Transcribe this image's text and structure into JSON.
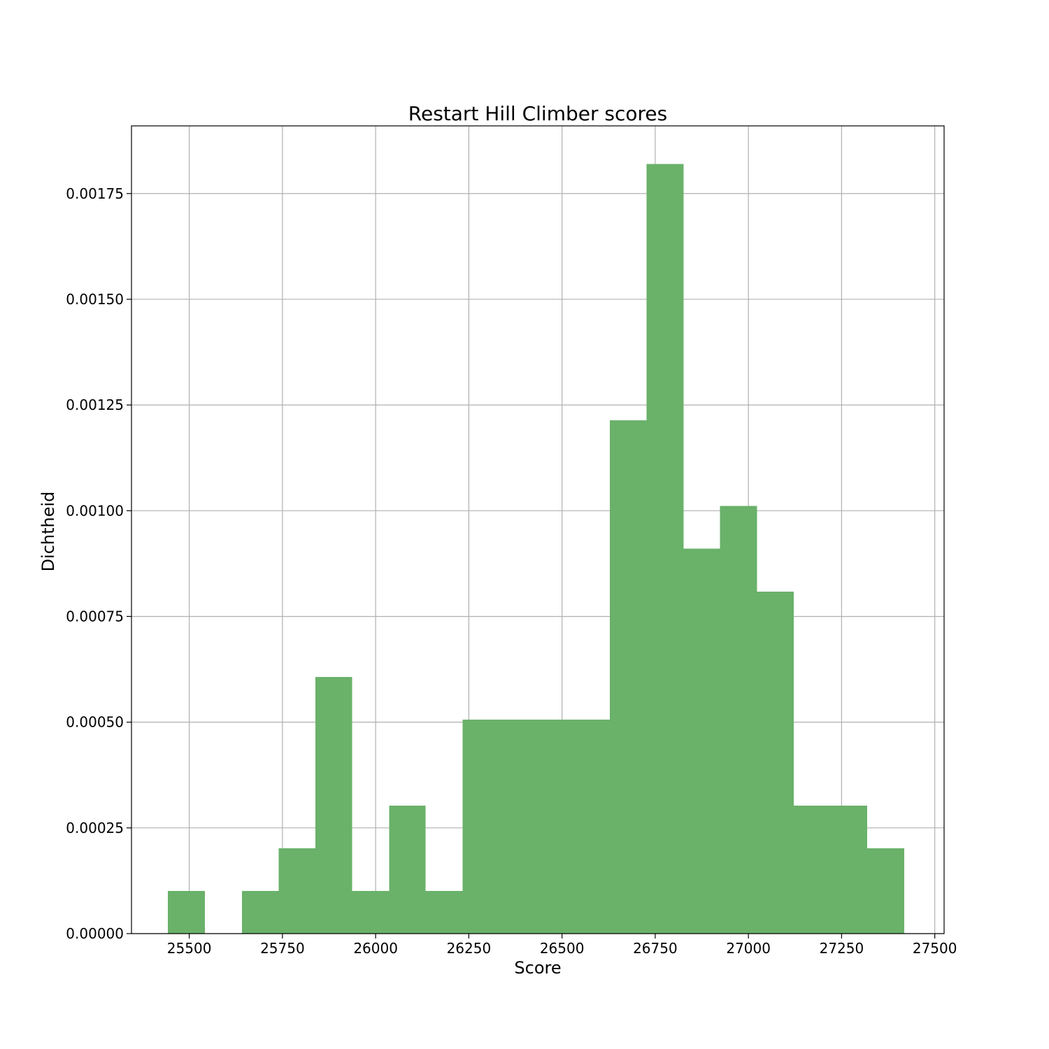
{
  "chart_data": {
    "type": "bar",
    "title": "Restart Hill Climber scores",
    "xlabel": "Score",
    "ylabel": "Dichtheid",
    "xlim": [
      25345,
      27525
    ],
    "ylim": [
      0,
      0.00191
    ],
    "xticks": [
      25500,
      25750,
      26000,
      26250,
      26500,
      26750,
      27000,
      27250,
      27500
    ],
    "yticks": [
      0.0,
      0.00025,
      0.0005,
      0.00075,
      0.001,
      0.00125,
      0.0015,
      0.00175
    ],
    "xtick_labels": [
      "25500",
      "25750",
      "26000",
      "26250",
      "26500",
      "26750",
      "27000",
      "27250",
      "27500"
    ],
    "ytick_labels": [
      "0.00000",
      "0.00025",
      "0.00050",
      "0.00075",
      "0.00100",
      "0.00125",
      "0.00150",
      "0.00175"
    ],
    "grid": true,
    "color": "#6ab16a",
    "bins": [
      {
        "x0": 25443,
        "x1": 25542,
        "value": 0.000101
      },
      {
        "x0": 25542,
        "x1": 25641,
        "value": 0.0
      },
      {
        "x0": 25641,
        "x1": 25740,
        "value": 0.000101
      },
      {
        "x0": 25740,
        "x1": 25838,
        "value": 0.000202
      },
      {
        "x0": 25838,
        "x1": 25937,
        "value": 0.000607
      },
      {
        "x0": 25937,
        "x1": 26036,
        "value": 0.000101
      },
      {
        "x0": 26036,
        "x1": 26134,
        "value": 0.000303
      },
      {
        "x0": 26134,
        "x1": 26233,
        "value": 0.000101
      },
      {
        "x0": 26233,
        "x1": 26332,
        "value": 0.000506
      },
      {
        "x0": 26332,
        "x1": 26431,
        "value": 0.000506
      },
      {
        "x0": 26431,
        "x1": 26529,
        "value": 0.000506
      },
      {
        "x0": 26529,
        "x1": 26628,
        "value": 0.000506
      },
      {
        "x0": 26628,
        "x1": 26727,
        "value": 0.001214
      },
      {
        "x0": 26727,
        "x1": 26826,
        "value": 0.00182
      },
      {
        "x0": 26826,
        "x1": 26924,
        "value": 0.00091
      },
      {
        "x0": 26924,
        "x1": 27023,
        "value": 0.001011
      },
      {
        "x0": 27023,
        "x1": 27122,
        "value": 0.000809
      },
      {
        "x0": 27122,
        "x1": 27220,
        "value": 0.000303
      },
      {
        "x0": 27220,
        "x1": 27319,
        "value": 0.000303
      },
      {
        "x0": 27319,
        "x1": 27418,
        "value": 0.000202
      }
    ]
  }
}
